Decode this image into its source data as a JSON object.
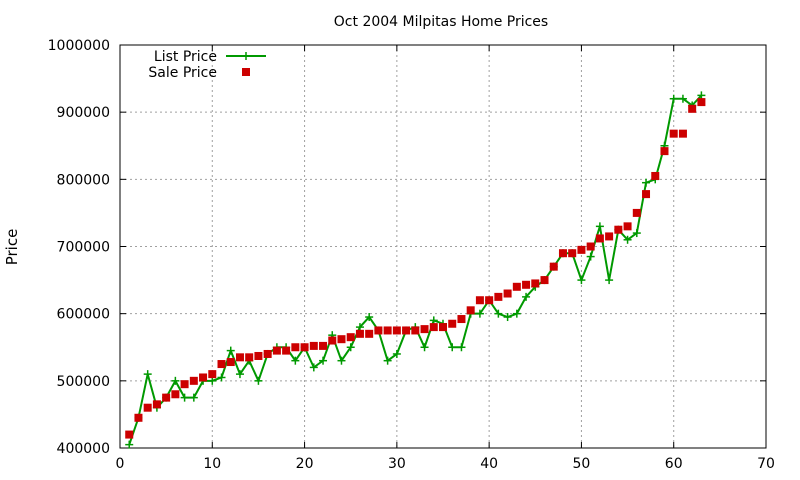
{
  "chart_data": {
    "type": "line",
    "title": "Oct 2004 Milpitas Home Prices",
    "xlabel": "",
    "ylabel": "Price",
    "xlim": [
      0,
      70
    ],
    "ylim": [
      400000,
      1000000
    ],
    "xticks": [
      0,
      10,
      20,
      30,
      40,
      50,
      60,
      70
    ],
    "yticks": [
      400000,
      500000,
      600000,
      700000,
      800000,
      900000,
      1000000
    ],
    "grid": true,
    "legend_position": "top-left",
    "series": [
      {
        "name": "List Price",
        "style": "line-with-plus-markers",
        "color": "#009900",
        "x": [
          1,
          2,
          3,
          4,
          5,
          6,
          7,
          8,
          9,
          10,
          11,
          12,
          13,
          14,
          15,
          16,
          17,
          18,
          19,
          20,
          21,
          22,
          23,
          24,
          25,
          26,
          27,
          28,
          29,
          30,
          31,
          32,
          33,
          34,
          35,
          36,
          37,
          38,
          39,
          40,
          41,
          42,
          43,
          44,
          45,
          46,
          47,
          48,
          49,
          50,
          51,
          52,
          53,
          54,
          55,
          56,
          57,
          58,
          59,
          60,
          61,
          62,
          63
        ],
        "y": [
          405000,
          445000,
          510000,
          460000,
          475000,
          500000,
          475000,
          475000,
          500000,
          500000,
          505000,
          545000,
          510000,
          530000,
          500000,
          540000,
          550000,
          550000,
          530000,
          550000,
          520000,
          530000,
          568000,
          530000,
          550000,
          580000,
          595000,
          575000,
          530000,
          540000,
          575000,
          580000,
          550000,
          590000,
          585000,
          550000,
          550000,
          600000,
          600000,
          620000,
          600000,
          595000,
          600000,
          625000,
          640000,
          650000,
          670000,
          690000,
          690000,
          650000,
          685000,
          730000,
          650000,
          725000,
          710000,
          720000,
          795000,
          800000,
          850000,
          920000,
          920000,
          910000,
          925000
        ]
      },
      {
        "name": "Sale Price",
        "style": "square-markers",
        "color": "#cc0000",
        "x": [
          1,
          2,
          3,
          4,
          5,
          6,
          7,
          8,
          9,
          10,
          11,
          12,
          13,
          14,
          15,
          16,
          17,
          18,
          19,
          20,
          21,
          22,
          23,
          24,
          25,
          26,
          27,
          28,
          29,
          30,
          31,
          32,
          33,
          34,
          35,
          36,
          37,
          38,
          39,
          40,
          41,
          42,
          43,
          44,
          45,
          46,
          47,
          48,
          49,
          50,
          51,
          52,
          53,
          54,
          55,
          56,
          57,
          58,
          59,
          60,
          61,
          62,
          63
        ],
        "y": [
          420000,
          445000,
          460000,
          465000,
          475000,
          480000,
          495000,
          500000,
          505000,
          510000,
          525000,
          528000,
          535000,
          535000,
          537000,
          540000,
          545000,
          545000,
          550000,
          550000,
          552000,
          552000,
          560000,
          562000,
          565000,
          570000,
          570000,
          575000,
          575000,
          575000,
          575000,
          575000,
          577000,
          580000,
          580000,
          585000,
          592000,
          605000,
          620000,
          620000,
          625000,
          630000,
          640000,
          643000,
          645000,
          650000,
          670000,
          690000,
          690000,
          695000,
          700000,
          712000,
          715000,
          725000,
          730000,
          750000,
          778000,
          805000,
          842000,
          868000,
          868000,
          905000,
          915000
        ]
      }
    ]
  }
}
